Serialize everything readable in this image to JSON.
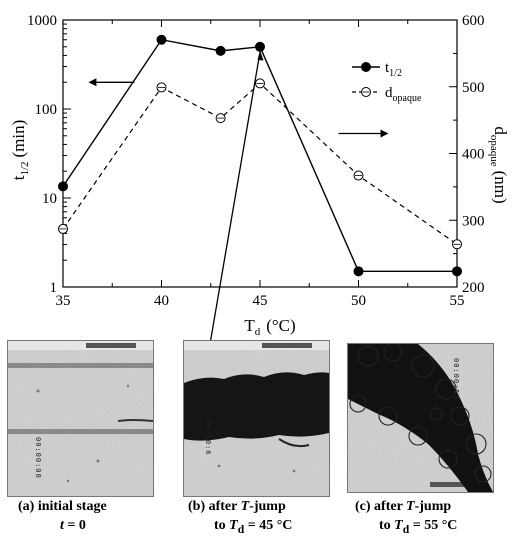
{
  "chart_data": {
    "type": "line",
    "x": [
      35,
      40,
      43,
      45,
      50,
      55
    ],
    "series": [
      {
        "name": "t1/2",
        "axis": "left",
        "style": "solid-filled-circle",
        "values": [
          13.5,
          600,
          450,
          500,
          1.5,
          1.5
        ]
      },
      {
        "name": "dopaque",
        "axis": "right",
        "style": "dashed-open-circle",
        "values": [
          287,
          499,
          453,
          505,
          367,
          264
        ]
      }
    ],
    "xlabel_main": "T",
    "xlabel_sub": "d",
    "xlabel_unit": "(°C)",
    "ylabel_left_main": "t",
    "ylabel_left_sub": "1/2",
    "ylabel_left_unit": "(min)",
    "ylabel_right_main": "d",
    "ylabel_right_sub": "opaque",
    "ylabel_right_unit": "(nm)",
    "xlim": [
      35,
      55
    ],
    "ylim_left": [
      1,
      1000
    ],
    "ylim_right": [
      200,
      600
    ],
    "left_scale": "log",
    "x_ticks": [
      "35",
      "40",
      "45",
      "50",
      "55"
    ],
    "y_left_ticks": [
      "1",
      "10",
      "100",
      "1000"
    ],
    "y_right_ticks": [
      "200",
      "300",
      "400",
      "500",
      "600"
    ],
    "legend": [
      {
        "main": "t",
        "sub": "1/2"
      },
      {
        "main": "d",
        "sub": "opaque"
      }
    ],
    "legend_position": "top-right",
    "grid": false
  },
  "panels": [
    {
      "id": "a",
      "caption_line1": "(a) initial stage",
      "caption_t": "t",
      "caption_eq": " = 0",
      "timestamp": "00:00:00"
    },
    {
      "id": "b",
      "caption_line1_pre": "(b) after ",
      "caption_line1_T": "T",
      "caption_line1_post": "-jump",
      "caption_line2_pre": "to ",
      "caption_line2_T": "T",
      "caption_line2_sub": "d",
      "caption_line2_post": " = 45 °C",
      "timestamp": "00:10:6"
    },
    {
      "id": "c",
      "caption_line1_pre": "(c) after ",
      "caption_line1_T": "T",
      "caption_line1_post": "-jump",
      "caption_line2_pre": "to ",
      "caption_line2_T": "T",
      "caption_line2_sub": "d",
      "caption_line2_post": " = 55 °C",
      "timestamp": "00:00:55"
    }
  ]
}
